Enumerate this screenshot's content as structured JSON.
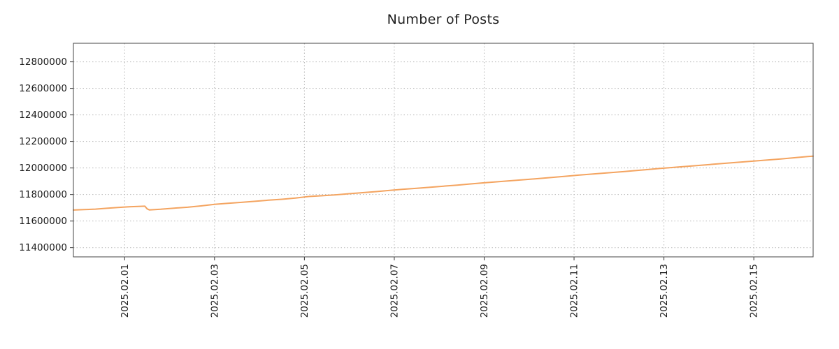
{
  "title": "Number of Posts",
  "colors": {
    "line": "#f4a460",
    "grid": "#b5b5b5",
    "border": "#444444",
    "tick": "#333333",
    "text": "#1c1c1c",
    "background": "#ffffff"
  },
  "chart_data": {
    "type": "line",
    "title": "Number of Posts",
    "xlabel": "",
    "ylabel": "",
    "grid": true,
    "legend": "none",
    "xlim": [
      -1.14,
      15.32
    ],
    "ylim": [
      11330000,
      12940000
    ],
    "x_tick_values": [
      0,
      2,
      4,
      6,
      8,
      10,
      12,
      14
    ],
    "x_tick_labels": [
      "2025.02.01",
      "2025.02.03",
      "2025.02.05",
      "2025.02.07",
      "2025.02.09",
      "2025.02.11",
      "2025.02.13",
      "2025.02.15"
    ],
    "y_tick_values": [
      11400000,
      11600000,
      11800000,
      12000000,
      12200000,
      12400000,
      12600000,
      12800000
    ],
    "y_tick_labels": [
      "11400000",
      "11600000",
      "11800000",
      "12000000",
      "12200000",
      "12400000",
      "12600000",
      "12800000"
    ],
    "series": [
      {
        "name": "Number of Posts",
        "x": [
          -1.14,
          -0.9,
          -0.65,
          -0.4,
          -0.15,
          0.1,
          0.3,
          0.45,
          0.5,
          0.55,
          0.8,
          1.1,
          1.4,
          1.7,
          2.0,
          2.3,
          2.6,
          2.9,
          3.2,
          3.5,
          3.8,
          4.1,
          4.4,
          4.7,
          5.0,
          5.3,
          5.6,
          5.9,
          6.2,
          6.5,
          6.8,
          7.1,
          7.4,
          7.7,
          8.0,
          8.3,
          8.6,
          8.9,
          9.2,
          9.5,
          9.8,
          10.1,
          10.4,
          10.7,
          11.0,
          11.3,
          11.6,
          11.9,
          12.2,
          12.5,
          12.8,
          13.1,
          13.4,
          13.7,
          14.0,
          14.3,
          14.6,
          14.9,
          15.2,
          15.32
        ],
        "y": [
          11683000,
          11686000,
          11690000,
          11696000,
          11702000,
          11707000,
          11710000,
          11712000,
          11692000,
          11684000,
          11689000,
          11697000,
          11704000,
          11714000,
          11726000,
          11734000,
          11741000,
          11749000,
          11757000,
          11764000,
          11773000,
          11785000,
          11791000,
          11798000,
          11806000,
          11814000,
          11822000,
          11831000,
          11840000,
          11847000,
          11855000,
          11863000,
          11871000,
          11880000,
          11888000,
          11896000,
          11904000,
          11912000,
          11920000,
          11929000,
          11937000,
          11946000,
          11954000,
          11962000,
          11970000,
          11978000,
          11987000,
          11996000,
          12004000,
          12012000,
          12020000,
          12028000,
          12036000,
          12044000,
          12052000,
          12060000,
          12068000,
          12077000,
          12086000,
          12089000
        ]
      }
    ]
  }
}
